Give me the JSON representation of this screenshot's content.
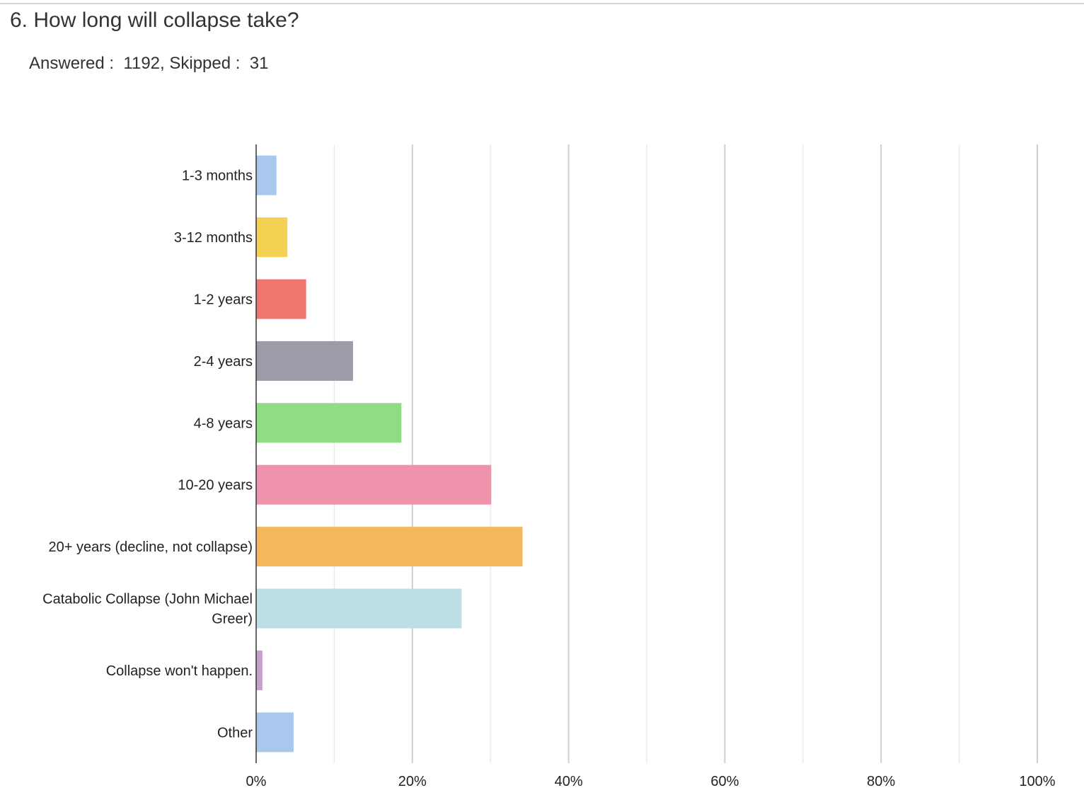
{
  "question": {
    "title": "6. How long will collapse take?"
  },
  "summary": {
    "answered_label": "Answered :",
    "answered_value": "1192,",
    "skipped_label": "Skipped :",
    "skipped_value": "31"
  },
  "chart_data": {
    "type": "bar",
    "orientation": "horizontal",
    "categories": [
      "1-3 months",
      "3-12 months",
      "1-2 years",
      "2-4 years",
      "4-8 years",
      "10-20 years",
      "20+ years (decline, not collapse)",
      "Catabolic Collapse (John Michael Greer)",
      "Collapse won't happen.",
      "Other"
    ],
    "values": [
      2.6,
      4.0,
      6.4,
      12.4,
      18.6,
      30.1,
      34.1,
      26.3,
      0.8,
      4.8
    ],
    "colors": [
      "#a8c8ee",
      "#f4d152",
      "#ef766e",
      "#9c9ca9",
      "#90dc84",
      "#ee93ab",
      "#f4b75c",
      "#bbdfe5",
      "#c4a0ca",
      "#a8c8ee"
    ],
    "xlim": [
      0,
      100
    ],
    "ticks": [
      "0%",
      "20%",
      "40%",
      "60%",
      "80%",
      "100%"
    ],
    "grid": true,
    "title": "",
    "xlabel": "",
    "ylabel": ""
  }
}
